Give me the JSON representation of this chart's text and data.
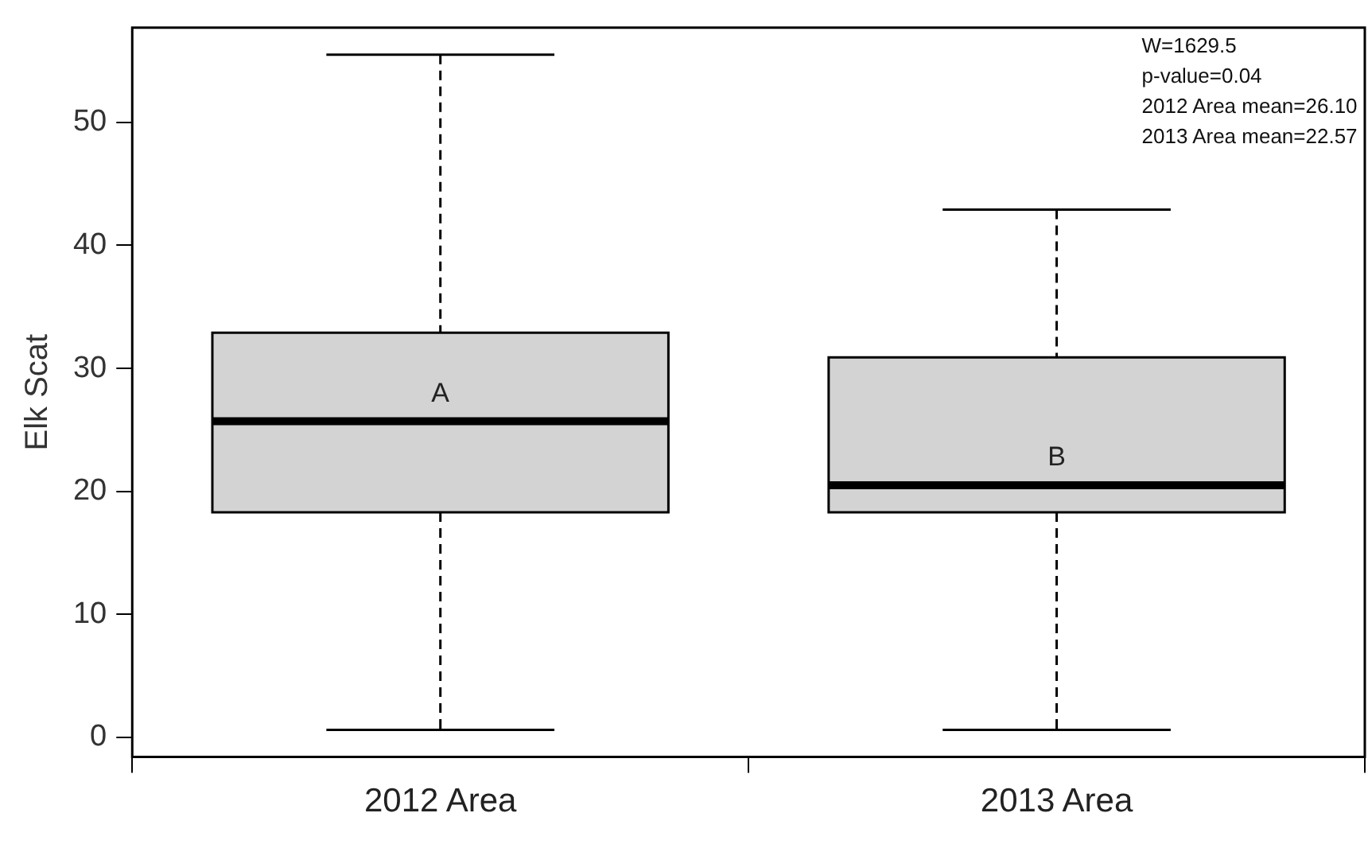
{
  "chart_data": {
    "type": "box",
    "ylabel": "Elk Scat",
    "categories": [
      "2012 Area",
      "2013 Area"
    ],
    "boxes": [
      {
        "low": 0.6,
        "q1": 18.3,
        "median": 25.7,
        "q3": 32.9,
        "high": 55.5
      },
      {
        "low": 0.6,
        "q1": 18.3,
        "median": 20.5,
        "q3": 30.9,
        "high": 42.9
      }
    ],
    "color": "#d3d3d3",
    "ylim": [
      -1.6,
      57.7
    ],
    "yticks": [
      0,
      10,
      20,
      30,
      40,
      50
    ],
    "grid": false,
    "legend": false,
    "annotations": [
      "W=1629.5",
      "p-value=0.04",
      "2012 Area mean=26.10",
      "2013 Area mean=22.57",
      "A",
      "B"
    ]
  }
}
